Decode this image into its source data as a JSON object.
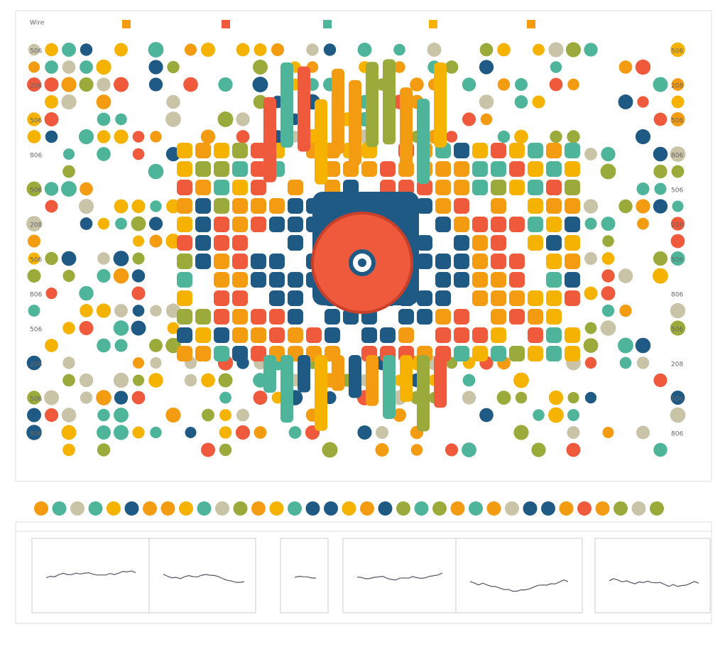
{
  "header": {
    "title": "Wire"
  },
  "row_labels": [
    "506",
    "208",
    "506",
    "806",
    "506",
    "208",
    "506",
    "806",
    "506",
    "208",
    "506",
    "806"
  ],
  "right_labels": [
    "506",
    "208",
    "506",
    "806",
    "506",
    "208",
    "506",
    "806",
    "506",
    "208",
    "506",
    "806"
  ]
}
